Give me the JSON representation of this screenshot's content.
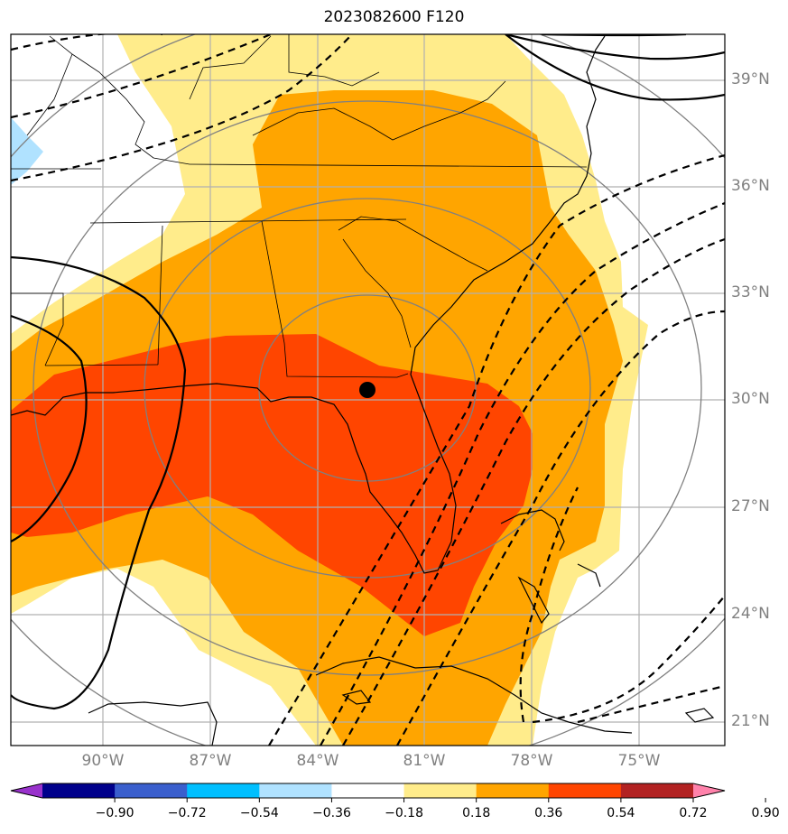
{
  "title": "2023082600 F120",
  "lon_labels": [
    "90°W",
    "87°W",
    "84°W",
    "81°W",
    "78°W",
    "75°W"
  ],
  "lat_labels": [
    "39°N",
    "36°N",
    "33°N",
    "30°N",
    "27°N",
    "24°N",
    "21°N"
  ],
  "colorbar": {
    "ticks": [
      "−0.90",
      "−0.72",
      "−0.54",
      "−0.36",
      "−0.18",
      "0.18",
      "0.36",
      "0.54",
      "0.72",
      "0.90"
    ],
    "colors": [
      "#9932cc",
      "#00008b",
      "#3a5fcd",
      "#00bfff",
      "#b0e2ff",
      "#ffffff",
      "#ffec8b",
      "#ffa500",
      "#ff4500",
      "#b22222",
      "#ff82ab"
    ]
  },
  "fill_colors": {
    "light_yellow": "#ffec8b",
    "orange": "#ffa500",
    "red_orange": "#ff4500",
    "light_blue": "#b0e2ff"
  },
  "center_marker": {
    "lon": -82.4,
    "lat": 30.3
  }
}
